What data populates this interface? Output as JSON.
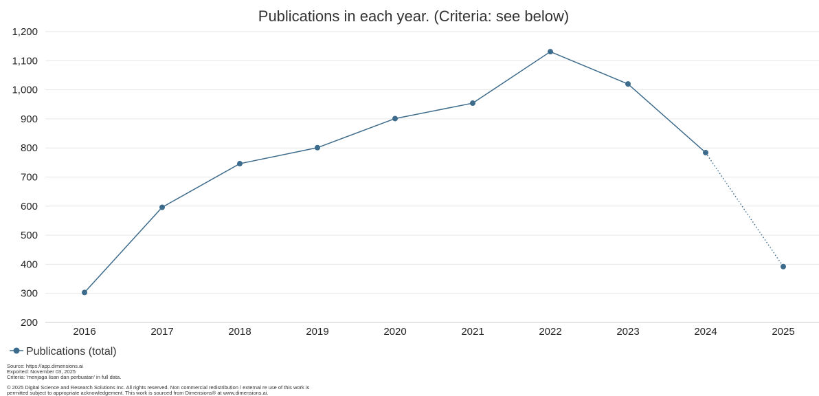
{
  "colors": {
    "series": "#3d6b8c",
    "grid": "#e6e6e6",
    "axis": "#cccccc"
  },
  "chart_data": {
    "type": "line",
    "title": "Publications in each year. (Criteria: see below)",
    "xlabel": "",
    "ylabel": "",
    "categories": [
      "2016",
      "2017",
      "2018",
      "2019",
      "2020",
      "2021",
      "2022",
      "2023",
      "2024",
      "2025"
    ],
    "series": [
      {
        "name": "Publications (total)",
        "values": [
          303,
          596,
          746,
          801,
          901,
          954,
          1131,
          1020,
          784,
          392
        ],
        "dotted_from_index": 8
      }
    ],
    "ylim": [
      200,
      1200
    ],
    "yticks": [
      200,
      300,
      400,
      500,
      600,
      700,
      800,
      900,
      1000,
      1100,
      1200
    ],
    "ytick_labels": [
      "200",
      "300",
      "400",
      "500",
      "600",
      "700",
      "800",
      "900",
      "1,000",
      "1,100",
      "1,200"
    ],
    "grid": true,
    "legend_position": "bottom-left"
  },
  "footer": {
    "source_lines": [
      "Source: https://app.dimensions.ai",
      "Exported: November 03, 2025",
      "Criteria: 'menjaga lisan dan perbuatan' in full data."
    ],
    "copyright_lines": [
      "© 2025 Digital Science and Research Solutions Inc. All rights reserved. Non commercial redistribution / external re use of this work is",
      "permitted subject to appropriate acknowledgement. This work is sourced from Dimensions® at www.dimensions.ai."
    ]
  }
}
